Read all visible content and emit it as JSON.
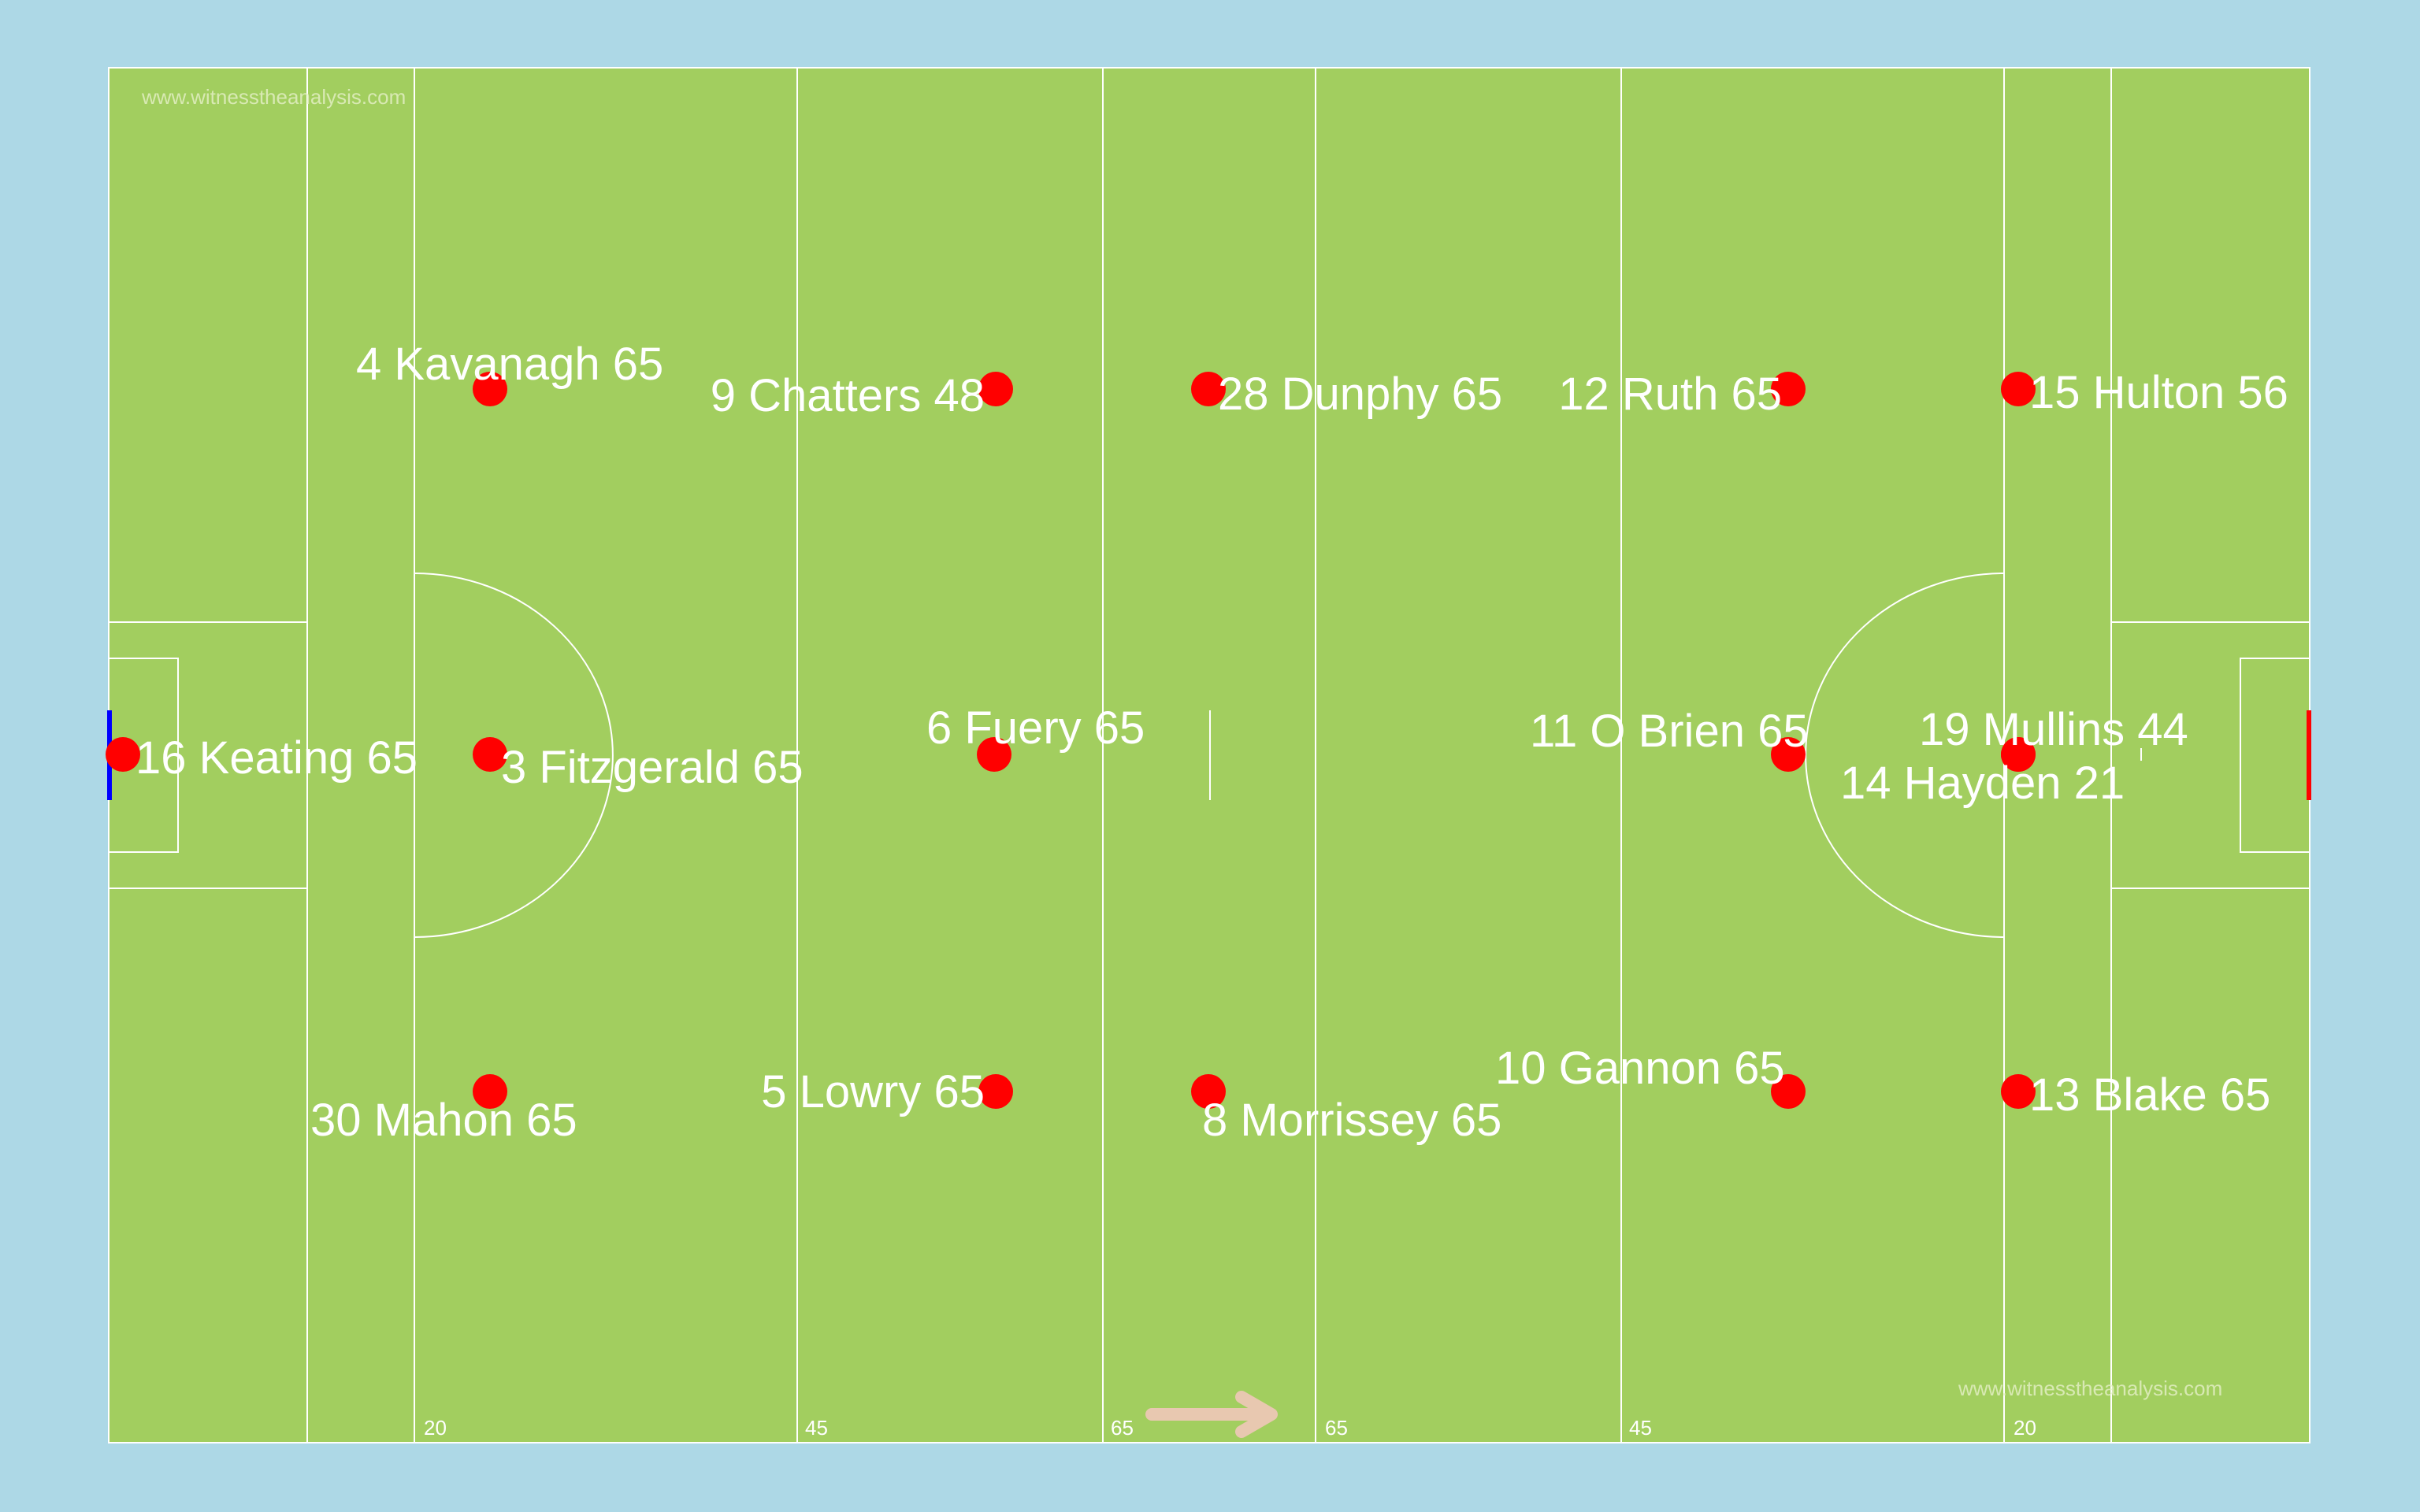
{
  "watermark": "www.witnesstheanalysis.com",
  "distance_markers": [
    "20",
    "45",
    "65",
    "65",
    "45",
    "20"
  ],
  "colors": {
    "background": "#add8e6",
    "pitch": "#a2ce5f",
    "lines": "#ffffff",
    "player_dot": "#ff0000",
    "left_goal": "#0000ff",
    "right_goal": "#ff0000",
    "direction_arrow": "#e8c8b0"
  },
  "direction_icon": "arrow-right-icon",
  "players": [
    {
      "label": "16 Keating  65"
    },
    {
      "label": "4 Kavanagh 65"
    },
    {
      "label": "3 Fitzgerald 65"
    },
    {
      "label": "30 Mahon 65"
    },
    {
      "label": "9 Chatters 48"
    },
    {
      "label": "6 Fuery 65"
    },
    {
      "label": "5 Lowry 65"
    },
    {
      "label": "28 Dunphy 65"
    },
    {
      "label": "8 Morrissey 65"
    },
    {
      "label": "12 Ruth 65"
    },
    {
      "label": "11 O Brien 65"
    },
    {
      "label": "10 Gannon 65"
    },
    {
      "label": "15 Hulton 56"
    },
    {
      "label": "19 Mullins 44"
    },
    {
      "label": "14 Hayden 21"
    },
    {
      "label": "13 Blake 65"
    }
  ]
}
